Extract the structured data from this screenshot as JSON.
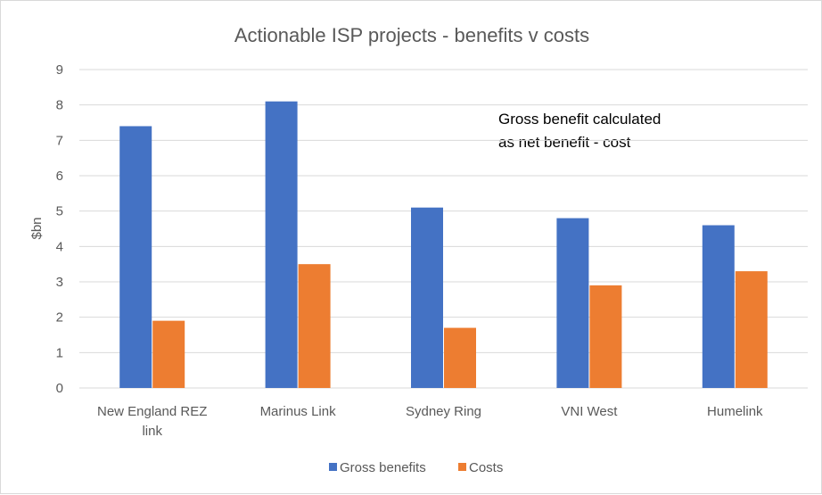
{
  "chart_data": {
    "type": "bar",
    "title": "Actionable ISP projects - benefits v costs",
    "xlabel": "",
    "ylabel": "$bn",
    "ylim": [
      0,
      9
    ],
    "yticks": [
      "0",
      "1",
      "2",
      "3",
      "4",
      "5",
      "6",
      "7",
      "8",
      "9"
    ],
    "grid": true,
    "legend": "bottom",
    "categories": [
      [
        "New England REZ",
        "link"
      ],
      [
        "Marinus Link"
      ],
      [
        "Sydney Ring"
      ],
      [
        "VNI West"
      ],
      [
        "Humelink"
      ]
    ],
    "series": [
      {
        "name": "Gross benefits",
        "color": "#4472C4",
        "values": [
          7.4,
          8.1,
          5.1,
          4.8,
          4.6
        ]
      },
      {
        "name": "Costs",
        "color": "#ED7D31",
        "values": [
          1.9,
          3.5,
          1.7,
          2.9,
          3.3
        ]
      }
    ],
    "annotation": [
      "Gross benefit calculated",
      "as net benefit - cost"
    ]
  }
}
